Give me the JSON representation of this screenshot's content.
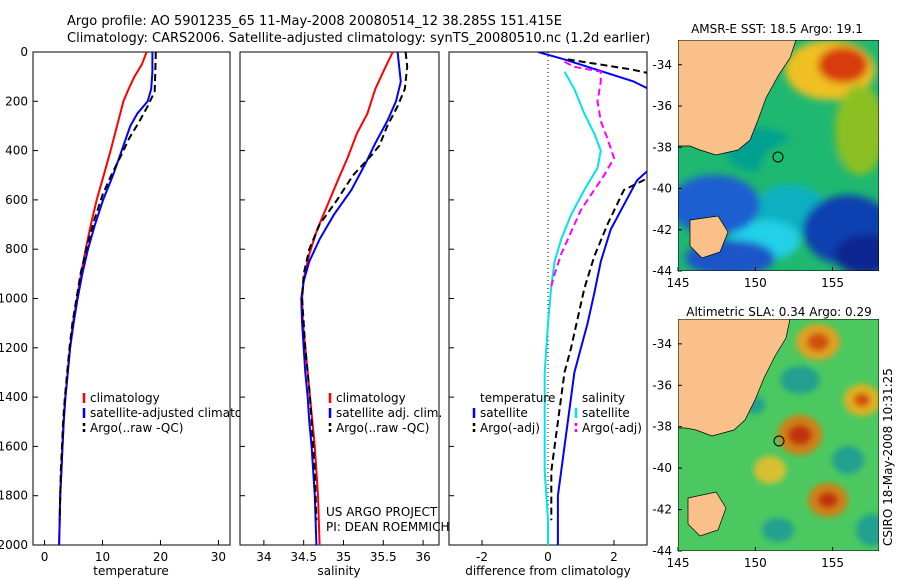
{
  "header": {
    "title_line1": "Argo profile: AO 5901235_65 11-May-2008 20080514_12 38.285S 151.415E",
    "title_line2": "Climatology: CARS2006. Satellite-adjusted climatology: synTS_20080510.nc (1.2d earlier)"
  },
  "colors": {
    "climatology": "#ff0000",
    "satellite": "#0000ff",
    "argo": "#000000",
    "sat_salinity": "#00e5e5",
    "argo_salinity_adj": "#ff00ff"
  },
  "chart_data": [
    {
      "type": "line",
      "xlabel": "temperature",
      "ylabel": "",
      "xlim": [
        -2,
        32
      ],
      "ylim": [
        2000,
        0
      ],
      "xticks": [
        0,
        10,
        20,
        30
      ],
      "yticks": [
        0,
        200,
        400,
        600,
        800,
        1000,
        1200,
        1400,
        1600,
        1800,
        2000
      ],
      "legend": [
        "climatology",
        "satellite-adjusted climatology",
        "Argo(..raw -QC)"
      ],
      "legend_placement": "lower-right",
      "series": [
        {
          "name": "climatology",
          "style": "solid",
          "color": "#ff0000",
          "points": [
            [
              17.6,
              0
            ],
            [
              16.8,
              50
            ],
            [
              15.5,
              100
            ],
            [
              14.5,
              150
            ],
            [
              13.6,
              200
            ],
            [
              12.5,
              300
            ],
            [
              11.4,
              400
            ],
            [
              10.2,
              500
            ],
            [
              9.0,
              600
            ],
            [
              8.0,
              700
            ],
            [
              7.1,
              800
            ],
            [
              6.3,
              900
            ],
            [
              5.6,
              1000
            ],
            [
              4.9,
              1100
            ],
            [
              4.4,
              1200
            ],
            [
              4.0,
              1300
            ],
            [
              3.6,
              1400
            ],
            [
              3.3,
              1500
            ],
            [
              3.1,
              1600
            ],
            [
              2.9,
              1700
            ],
            [
              2.7,
              1800
            ],
            [
              2.6,
              1900
            ],
            [
              2.5,
              2000
            ]
          ]
        },
        {
          "name": "satellite-adjusted climatology",
          "style": "solid",
          "color": "#0000ff",
          "points": [
            [
              18.6,
              0
            ],
            [
              18.6,
              80
            ],
            [
              18.4,
              150
            ],
            [
              17.8,
              200
            ],
            [
              16.0,
              250
            ],
            [
              14.8,
              300
            ],
            [
              13.3,
              400
            ],
            [
              11.8,
              500
            ],
            [
              10.1,
              600
            ],
            [
              8.7,
              700
            ],
            [
              7.5,
              800
            ],
            [
              6.5,
              900
            ],
            [
              5.7,
              1000
            ],
            [
              5.0,
              1100
            ],
            [
              4.4,
              1200
            ],
            [
              4.0,
              1300
            ],
            [
              3.6,
              1400
            ],
            [
              3.3,
              1500
            ],
            [
              3.1,
              1600
            ],
            [
              2.9,
              1700
            ],
            [
              2.7,
              1800
            ],
            [
              2.6,
              1900
            ],
            [
              2.5,
              2000
            ]
          ]
        },
        {
          "name": "Argo(..raw -QC)",
          "style": "dashed",
          "color": "#000000",
          "points": [
            [
              19.2,
              0
            ],
            [
              19.1,
              80
            ],
            [
              19.0,
              160
            ],
            [
              17.8,
              220
            ],
            [
              16.4,
              280
            ],
            [
              14.6,
              350
            ],
            [
              13.2,
              420
            ],
            [
              11.5,
              500
            ],
            [
              10.0,
              580
            ],
            [
              8.6,
              680
            ],
            [
              7.3,
              790
            ],
            [
              6.2,
              900
            ],
            [
              5.5,
              1000
            ],
            [
              4.8,
              1100
            ],
            [
              4.3,
              1200
            ],
            [
              3.9,
              1300
            ],
            [
              3.5,
              1400
            ],
            [
              3.2,
              1500
            ],
            [
              3.0,
              1600
            ],
            [
              2.8,
              1700
            ],
            [
              2.7,
              1800
            ],
            [
              2.6,
              1900
            ]
          ]
        }
      ]
    },
    {
      "type": "line",
      "xlabel": "salinity",
      "ylabel": "",
      "xlim": [
        33.7,
        36.2
      ],
      "ylim": [
        2000,
        0
      ],
      "xticks": [
        34,
        34.5,
        35,
        35.5,
        36
      ],
      "yticks": [
        0,
        200,
        400,
        600,
        800,
        1000,
        1200,
        1400,
        1600,
        1800,
        2000
      ],
      "legend": [
        "climatology",
        "satellite adj. clim.",
        "Argo(..raw -QC)"
      ],
      "legend_placement": "lower-right",
      "annotation": [
        "US ARGO PROJECT",
        "PI: DEAN ROEMMICH"
      ],
      "series": [
        {
          "name": "climatology",
          "style": "solid",
          "color": "#ff0000",
          "points": [
            [
              35.62,
              0
            ],
            [
              35.5,
              80
            ],
            [
              35.4,
              150
            ],
            [
              35.3,
              250
            ],
            [
              35.17,
              330
            ],
            [
              35.05,
              430
            ],
            [
              34.93,
              520
            ],
            [
              34.8,
              620
            ],
            [
              34.67,
              720
            ],
            [
              34.57,
              820
            ],
            [
              34.5,
              920
            ],
            [
              34.48,
              1000
            ],
            [
              34.49,
              1100
            ],
            [
              34.52,
              1200
            ],
            [
              34.55,
              1300
            ],
            [
              34.58,
              1400
            ],
            [
              34.61,
              1500
            ],
            [
              34.64,
              1600
            ],
            [
              34.66,
              1700
            ],
            [
              34.68,
              1800
            ],
            [
              34.69,
              1900
            ],
            [
              34.7,
              2000
            ]
          ]
        },
        {
          "name": "satellite adj. clim.",
          "style": "solid",
          "color": "#0000ff",
          "points": [
            [
              35.68,
              0
            ],
            [
              35.7,
              60
            ],
            [
              35.72,
              120
            ],
            [
              35.66,
              200
            ],
            [
              35.55,
              280
            ],
            [
              35.4,
              370
            ],
            [
              35.28,
              450
            ],
            [
              35.1,
              560
            ],
            [
              34.88,
              660
            ],
            [
              34.7,
              760
            ],
            [
              34.57,
              850
            ],
            [
              34.5,
              930
            ],
            [
              34.47,
              1000
            ],
            [
              34.48,
              1100
            ],
            [
              34.5,
              1200
            ],
            [
              34.52,
              1300
            ],
            [
              34.55,
              1400
            ],
            [
              34.57,
              1500
            ],
            [
              34.6,
              1600
            ],
            [
              34.62,
              1700
            ],
            [
              34.64,
              1800
            ],
            [
              34.65,
              1900
            ],
            [
              34.66,
              2000
            ]
          ]
        },
        {
          "name": "Argo(..raw -QC)",
          "style": "dashed",
          "color": "#000000",
          "points": [
            [
              35.78,
              0
            ],
            [
              35.8,
              60
            ],
            [
              35.77,
              150
            ],
            [
              35.68,
              220
            ],
            [
              35.55,
              300
            ],
            [
              35.45,
              380
            ],
            [
              35.35,
              420
            ],
            [
              35.12,
              500
            ],
            [
              34.92,
              600
            ],
            [
              34.7,
              700
            ],
            [
              34.57,
              800
            ],
            [
              34.5,
              900
            ],
            [
              34.48,
              1000
            ],
            [
              34.5,
              1100
            ],
            [
              34.52,
              1200
            ],
            [
              34.55,
              1300
            ],
            [
              34.58,
              1400
            ],
            [
              34.6,
              1500
            ],
            [
              34.62,
              1600
            ],
            [
              34.64,
              1700
            ],
            [
              34.65,
              1800
            ],
            [
              34.66,
              1900
            ]
          ]
        }
      ]
    },
    {
      "type": "line",
      "xlabel": "difference from climatology",
      "ylabel": "",
      "xlim": [
        -3,
        3
      ],
      "ylim": [
        2000,
        0
      ],
      "xticks": [
        -2,
        0,
        2
      ],
      "yticks": [
        0,
        200,
        400,
        600,
        800,
        1000,
        1200,
        1400,
        1600,
        1800,
        2000
      ],
      "legend": [
        "temperature",
        "satellite",
        "Argo(-adj)",
        "salinity",
        "satellite",
        "Argo(-adj)"
      ],
      "legend_placement": "lower-center",
      "series": [
        {
          "name": "satellite",
          "group": "temperature",
          "style": "solid",
          "color": "#0000ff",
          "points": [
            [
              -0.3,
              0
            ],
            [
              0.5,
              30
            ],
            [
              2.6,
              120
            ],
            [
              3.2,
              160
            ],
            [
              3.2,
              460
            ],
            [
              2.7,
              520
            ],
            [
              2.3,
              620
            ],
            [
              1.9,
              720
            ],
            [
              1.6,
              850
            ],
            [
              1.4,
              980
            ],
            [
              1.2,
              1100
            ],
            [
              1.0,
              1200
            ],
            [
              0.8,
              1300
            ],
            [
              0.7,
              1400
            ],
            [
              0.6,
              1500
            ],
            [
              0.5,
              1600
            ],
            [
              0.4,
              1700
            ],
            [
              0.3,
              1800
            ],
            [
              0.3,
              1900
            ],
            [
              0.3,
              2000
            ]
          ]
        },
        {
          "name": "Argo(-adj)",
          "group": "temperature",
          "style": "dashed",
          "color": "#000000",
          "points": [
            [
              0.6,
              30
            ],
            [
              2.5,
              70
            ],
            [
              3.2,
              90
            ],
            [
              3.2,
              500
            ],
            [
              2.3,
              560
            ],
            [
              1.8,
              700
            ],
            [
              1.4,
              830
            ],
            [
              1.1,
              960
            ],
            [
              0.9,
              1080
            ],
            [
              0.7,
              1200
            ],
            [
              0.5,
              1300
            ],
            [
              0.4,
              1400
            ],
            [
              0.3,
              1500
            ],
            [
              0.2,
              1600
            ],
            [
              0.1,
              1700
            ],
            [
              0.1,
              1800
            ],
            [
              0.1,
              1900
            ]
          ]
        },
        {
          "name": "satellite",
          "group": "salinity",
          "style": "solid",
          "color": "#00e5e5",
          "points": [
            [
              0.5,
              80
            ],
            [
              0.8,
              150
            ],
            [
              1.1,
              250
            ],
            [
              1.4,
              330
            ],
            [
              1.6,
              400
            ],
            [
              1.5,
              470
            ],
            [
              1.1,
              560
            ],
            [
              0.7,
              660
            ],
            [
              0.4,
              760
            ],
            [
              0.2,
              850
            ],
            [
              0.1,
              950
            ],
            [
              0.0,
              1100
            ],
            [
              -0.1,
              1300
            ],
            [
              -0.1,
              1500
            ],
            [
              -0.1,
              1700
            ],
            [
              0.0,
              1900
            ],
            [
              0.0,
              2000
            ]
          ]
        },
        {
          "name": "Argo(-adj)",
          "group": "salinity",
          "style": "dashed",
          "color": "#ff00ff",
          "points": [
            [
              0.5,
              40
            ],
            [
              0.8,
              60
            ],
            [
              1.6,
              80
            ],
            [
              1.6,
              120
            ],
            [
              1.5,
              200
            ],
            [
              1.6,
              280
            ],
            [
              1.8,
              350
            ],
            [
              2.0,
              430
            ],
            [
              1.7,
              500
            ],
            [
              1.4,
              560
            ],
            [
              1.0,
              640
            ],
            [
              0.7,
              730
            ],
            [
              0.4,
              820
            ],
            [
              0.2,
              900
            ],
            [
              0.1,
              950
            ]
          ]
        }
      ]
    }
  ],
  "maps": {
    "sst": {
      "title": "AMSR-E SST: 18.5 Argo: 19.1",
      "xticks": [
        "145",
        "150",
        "155"
      ],
      "yticks": [
        "-34",
        "-36",
        "-38",
        "-40",
        "-42",
        "-44"
      ]
    },
    "sla": {
      "title": "Altimetric SLA: 0.34 Argo: 0.29",
      "xticks": [
        "145",
        "150",
        "155"
      ],
      "yticks": [
        "-34",
        "-36",
        "-38",
        "-40",
        "-42",
        "-44"
      ]
    }
  },
  "footer": {
    "stamp": "CSIRO 18-May-2008 10:31:25"
  }
}
